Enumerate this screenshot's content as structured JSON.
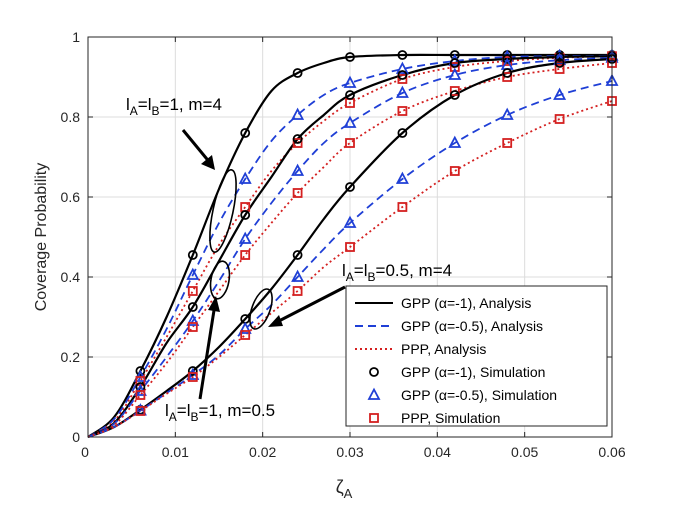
{
  "chart_data": {
    "type": "line",
    "xlabel_main": "ζ",
    "xlabel_sub": "A",
    "ylabel": "Coverage Probability",
    "xlim": [
      0,
      0.06
    ],
    "ylim": [
      0,
      1
    ],
    "xticks": [
      {
        "v": 0.01,
        "label": "0.01"
      },
      {
        "v": 0.02,
        "label": "0.02"
      },
      {
        "v": 0.03,
        "label": "0.03"
      },
      {
        "v": 0.04,
        "label": "0.04"
      },
      {
        "v": 0.05,
        "label": "0.05"
      },
      {
        "v": 0.06,
        "label": "0.06"
      }
    ],
    "x_origin_label": "0",
    "yticks": [
      {
        "v": 0,
        "label": "0"
      },
      {
        "v": 0.2,
        "label": "0.2"
      },
      {
        "v": 0.4,
        "label": "0.4"
      },
      {
        "v": 0.6,
        "label": "0.6"
      },
      {
        "v": 0.8,
        "label": "0.8"
      },
      {
        "v": 1,
        "label": "1"
      }
    ],
    "grid": true,
    "legend_position": "bottom-right",
    "styles": {
      "gpp1": {
        "color": "#000000",
        "dash": "",
        "marker": "circle"
      },
      "gpp05": {
        "color": "#1f3fd6",
        "dash": "8,5",
        "marker": "triangle"
      },
      "ppp": {
        "color": "#d42020",
        "dash": "2,3",
        "marker": "square"
      }
    },
    "legend": [
      {
        "text": "GPP (α=-1), Analysis",
        "style": "gpp1",
        "kind": "line"
      },
      {
        "text": "GPP (α=-0.5), Analysis",
        "style": "gpp05",
        "kind": "line"
      },
      {
        "text": "PPP, Analysis",
        "style": "ppp",
        "kind": "line"
      },
      {
        "text": "GPP (α=-1), Simulation",
        "style": "gpp1",
        "kind": "marker"
      },
      {
        "text": "GPP (α=-0.5), Simulation",
        "style": "gpp05",
        "kind": "marker"
      },
      {
        "text": "PPP, Simulation",
        "style": "ppp",
        "kind": "marker"
      }
    ],
    "series": [
      {
        "group": "lA=lB=1, m=4",
        "style": "gpp1",
        "x": [
          0,
          0.003,
          0.006,
          0.009,
          0.012,
          0.015,
          0.018,
          0.021,
          0.024,
          0.027,
          0.03,
          0.036,
          0.042,
          0.048,
          0.054,
          0.06
        ],
        "y": [
          0,
          0.05,
          0.165,
          0.3,
          0.455,
          0.62,
          0.76,
          0.865,
          0.91,
          0.935,
          0.95,
          0.955,
          0.955,
          0.955,
          0.955,
          0.955
        ],
        "mx": [
          0.006,
          0.012,
          0.018,
          0.024,
          0.03,
          0.036,
          0.042,
          0.048,
          0.054,
          0.06
        ],
        "my": [
          0.165,
          0.455,
          0.76,
          0.91,
          0.95,
          0.955,
          0.955,
          0.955,
          0.955,
          0.955
        ]
      },
      {
        "group": "lA=lB=1, m=4",
        "style": "gpp05",
        "x": [
          0,
          0.003,
          0.006,
          0.009,
          0.012,
          0.015,
          0.018,
          0.021,
          0.024,
          0.027,
          0.03,
          0.036,
          0.042,
          0.048,
          0.054,
          0.06
        ],
        "y": [
          0,
          0.045,
          0.15,
          0.27,
          0.405,
          0.535,
          0.645,
          0.74,
          0.805,
          0.855,
          0.885,
          0.92,
          0.94,
          0.95,
          0.952,
          0.953
        ],
        "mx": [
          0.006,
          0.012,
          0.018,
          0.024,
          0.03,
          0.036,
          0.042,
          0.048,
          0.054,
          0.06
        ],
        "my": [
          0.15,
          0.405,
          0.645,
          0.805,
          0.885,
          0.92,
          0.94,
          0.95,
          0.952,
          0.953
        ]
      },
      {
        "group": "lA=lB=1, m=4",
        "style": "ppp",
        "x": [
          0,
          0.003,
          0.006,
          0.009,
          0.012,
          0.015,
          0.018,
          0.021,
          0.024,
          0.027,
          0.03,
          0.036,
          0.042,
          0.048,
          0.054,
          0.06
        ],
        "y": [
          0,
          0.04,
          0.14,
          0.25,
          0.365,
          0.48,
          0.575,
          0.665,
          0.735,
          0.79,
          0.835,
          0.895,
          0.925,
          0.94,
          0.948,
          0.952
        ],
        "mx": [
          0.006,
          0.012,
          0.018,
          0.024,
          0.03,
          0.036,
          0.042,
          0.048,
          0.054,
          0.06
        ],
        "my": [
          0.14,
          0.365,
          0.575,
          0.735,
          0.835,
          0.895,
          0.925,
          0.94,
          0.948,
          0.952
        ]
      },
      {
        "group": "lA=lB=0.5, m=4",
        "style": "gpp1",
        "x": [
          0,
          0.003,
          0.006,
          0.009,
          0.012,
          0.015,
          0.018,
          0.021,
          0.024,
          0.027,
          0.03,
          0.036,
          0.042,
          0.048,
          0.054,
          0.06
        ],
        "y": [
          0,
          0.035,
          0.125,
          0.235,
          0.325,
          0.44,
          0.555,
          0.65,
          0.745,
          0.805,
          0.855,
          0.905,
          0.935,
          0.945,
          0.95,
          0.952
        ],
        "mx": [
          0.006,
          0.012,
          0.018,
          0.024,
          0.03,
          0.036,
          0.042,
          0.048,
          0.054,
          0.06
        ],
        "my": [
          0.125,
          0.325,
          0.555,
          0.745,
          0.855,
          0.905,
          0.935,
          0.945,
          0.95,
          0.952
        ]
      },
      {
        "group": "lA=lB=0.5, m=4",
        "style": "gpp05",
        "x": [
          0,
          0.003,
          0.006,
          0.009,
          0.012,
          0.015,
          0.018,
          0.021,
          0.024,
          0.027,
          0.03,
          0.036,
          0.042,
          0.048,
          0.054,
          0.06
        ],
        "y": [
          0,
          0.033,
          0.115,
          0.2,
          0.29,
          0.39,
          0.495,
          0.585,
          0.665,
          0.735,
          0.785,
          0.86,
          0.905,
          0.93,
          0.942,
          0.948
        ],
        "mx": [
          0.006,
          0.012,
          0.018,
          0.024,
          0.03,
          0.036,
          0.042,
          0.048,
          0.054,
          0.06
        ],
        "my": [
          0.115,
          0.29,
          0.495,
          0.665,
          0.785,
          0.86,
          0.905,
          0.93,
          0.942,
          0.948
        ]
      },
      {
        "group": "lA=lB=0.5, m=4",
        "style": "ppp",
        "x": [
          0,
          0.003,
          0.006,
          0.009,
          0.012,
          0.015,
          0.018,
          0.021,
          0.024,
          0.027,
          0.03,
          0.036,
          0.042,
          0.048,
          0.054,
          0.06
        ],
        "y": [
          0,
          0.03,
          0.105,
          0.185,
          0.275,
          0.365,
          0.455,
          0.535,
          0.61,
          0.675,
          0.735,
          0.815,
          0.865,
          0.9,
          0.92,
          0.935
        ],
        "mx": [
          0.006,
          0.012,
          0.018,
          0.024,
          0.03,
          0.036,
          0.042,
          0.048,
          0.054,
          0.06
        ],
        "my": [
          0.105,
          0.275,
          0.455,
          0.61,
          0.735,
          0.815,
          0.865,
          0.9,
          0.92,
          0.935
        ]
      },
      {
        "group": "lA=lB=1, m=0.5",
        "style": "gpp1",
        "x": [
          0,
          0.003,
          0.006,
          0.009,
          0.012,
          0.015,
          0.018,
          0.021,
          0.024,
          0.027,
          0.03,
          0.036,
          0.042,
          0.048,
          0.054,
          0.06
        ],
        "y": [
          0,
          0.025,
          0.068,
          0.115,
          0.165,
          0.225,
          0.295,
          0.37,
          0.455,
          0.545,
          0.625,
          0.76,
          0.855,
          0.91,
          0.935,
          0.945
        ],
        "mx": [
          0.006,
          0.012,
          0.018,
          0.024,
          0.03,
          0.036,
          0.042,
          0.048,
          0.054,
          0.06
        ],
        "my": [
          0.068,
          0.165,
          0.295,
          0.455,
          0.625,
          0.76,
          0.855,
          0.91,
          0.935,
          0.945
        ]
      },
      {
        "group": "lA=lB=1, m=0.5",
        "style": "gpp05",
        "x": [
          0,
          0.003,
          0.006,
          0.009,
          0.012,
          0.015,
          0.018,
          0.021,
          0.024,
          0.027,
          0.03,
          0.036,
          0.042,
          0.048,
          0.054,
          0.06
        ],
        "y": [
          0,
          0.025,
          0.066,
          0.11,
          0.155,
          0.205,
          0.27,
          0.33,
          0.4,
          0.47,
          0.535,
          0.645,
          0.735,
          0.805,
          0.855,
          0.89
        ],
        "mx": [
          0.006,
          0.012,
          0.018,
          0.024,
          0.03,
          0.036,
          0.042,
          0.048,
          0.054,
          0.06
        ],
        "my": [
          0.066,
          0.155,
          0.27,
          0.4,
          0.535,
          0.645,
          0.735,
          0.805,
          0.855,
          0.89
        ]
      },
      {
        "group": "lA=lB=1, m=0.5",
        "style": "ppp",
        "x": [
          0,
          0.003,
          0.006,
          0.009,
          0.012,
          0.015,
          0.018,
          0.021,
          0.024,
          0.027,
          0.03,
          0.036,
          0.042,
          0.048,
          0.054,
          0.06
        ],
        "y": [
          0,
          0.025,
          0.065,
          0.108,
          0.15,
          0.2,
          0.255,
          0.31,
          0.365,
          0.425,
          0.475,
          0.575,
          0.665,
          0.735,
          0.795,
          0.84
        ],
        "mx": [
          0.006,
          0.012,
          0.018,
          0.024,
          0.03,
          0.036,
          0.042,
          0.048,
          0.054,
          0.06
        ],
        "my": [
          0.065,
          0.15,
          0.255,
          0.365,
          0.475,
          0.575,
          0.665,
          0.735,
          0.795,
          0.84
        ]
      }
    ],
    "annotations": [
      {
        "name": "annotation-m4-l1",
        "parts": [
          [
            "l",
            ""
          ],
          [
            "A",
            "sub"
          ],
          [
            "=l",
            ""
          ],
          [
            "B",
            "sub"
          ],
          [
            "=1, m=4",
            ""
          ]
        ]
      },
      {
        "name": "annotation-m4-l05",
        "parts": [
          [
            "l",
            ""
          ],
          [
            "A",
            "sub"
          ],
          [
            "=l",
            ""
          ],
          [
            "B",
            "sub"
          ],
          [
            "=0.5, m=4",
            ""
          ]
        ]
      },
      {
        "name": "annotation-m05-l1",
        "parts": [
          [
            "l",
            ""
          ],
          [
            "A",
            "sub"
          ],
          [
            "=l",
            ""
          ],
          [
            "B",
            "sub"
          ],
          [
            "=1, m=0.5",
            ""
          ]
        ]
      }
    ]
  }
}
